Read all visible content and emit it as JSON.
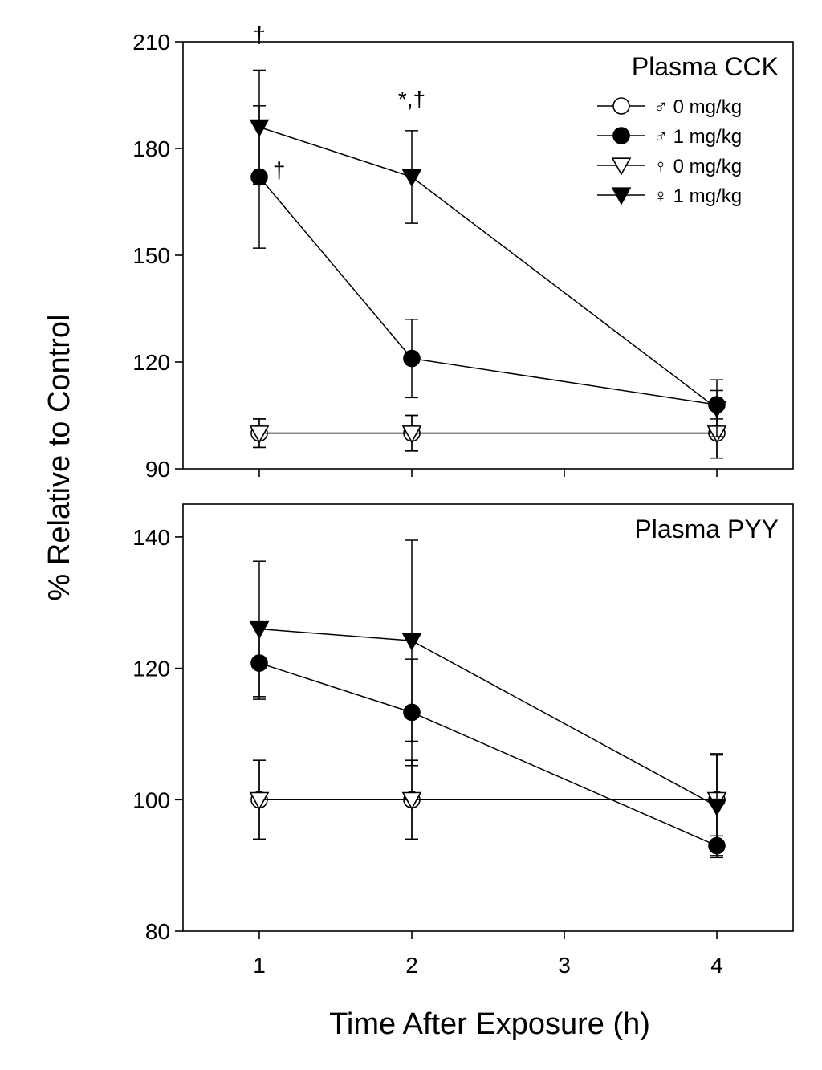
{
  "ylabel": "% Relative to Control",
  "xlabel": "Time After Exposure (h)",
  "chart_data": [
    {
      "type": "line",
      "title": "Plasma CCK",
      "ylabel": "% Relative to Control",
      "xlabel": "Time After Exposure (h)",
      "xlim": [
        0.5,
        4.5
      ],
      "ylim": [
        90,
        210
      ],
      "xticks": [
        1,
        2,
        3,
        4
      ],
      "yticks": [
        90,
        120,
        150,
        180,
        210
      ],
      "x_tick_labels_shown": false,
      "legend": "top-right",
      "series": [
        {
          "name": "♂ 0 mg/kg",
          "marker": "circle-open",
          "x": [
            1,
            2,
            4
          ],
          "y": [
            100,
            100,
            100
          ],
          "err": [
            4,
            5,
            7
          ]
        },
        {
          "name": "♂ 1 mg/kg",
          "marker": "circle-filled",
          "x": [
            1,
            2,
            4
          ],
          "y": [
            172,
            121,
            108
          ],
          "err": [
            20,
            11,
            4
          ]
        },
        {
          "name": "♀ 0 mg/kg",
          "marker": "triangle-down-open",
          "x": [
            1,
            2,
            4
          ],
          "y": [
            100,
            100,
            100
          ],
          "err": [
            4,
            5,
            7
          ]
        },
        {
          "name": "♀ 1 mg/kg",
          "marker": "triangle-down-filled",
          "x": [
            1,
            2,
            4
          ],
          "y": [
            186,
            172,
            107
          ],
          "err": [
            16,
            13,
            8
          ]
        }
      ],
      "annotations": [
        {
          "text": "†",
          "x": 1,
          "y": 212
        },
        {
          "text": "†",
          "x": 1.13,
          "y": 174
        },
        {
          "text": "*,†",
          "x": 2,
          "y": 194
        }
      ]
    },
    {
      "type": "line",
      "title": "Plasma PYY",
      "ylabel": "% Relative to Control",
      "xlabel": "Time After Exposure (h)",
      "xlim": [
        0.5,
        4.5
      ],
      "ylim": [
        80,
        145
      ],
      "xticks": [
        1,
        2,
        3,
        4
      ],
      "yticks": [
        80,
        100,
        120,
        140
      ],
      "series": [
        {
          "name": "♂ 0 mg/kg",
          "marker": "circle-open",
          "x": [
            1,
            2,
            4
          ],
          "y": [
            100,
            100,
            100
          ],
          "err": [
            6,
            6,
            7
          ]
        },
        {
          "name": "♂ 1 mg/kg",
          "marker": "circle-filled",
          "x": [
            1,
            2,
            4
          ],
          "y": [
            120.8,
            113.3,
            93
          ],
          "err": [
            5.5,
            8.1,
            1.5
          ]
        },
        {
          "name": "♀ 0 mg/kg",
          "marker": "triangle-down-open",
          "x": [
            1,
            2,
            4
          ],
          "y": [
            100,
            100,
            100
          ],
          "err": [
            6,
            6,
            7
          ]
        },
        {
          "name": "♀ 1 mg/kg",
          "marker": "triangle-down-filled",
          "x": [
            1,
            2,
            4
          ],
          "y": [
            126,
            124.2,
            99
          ],
          "err": [
            10.3,
            15.3,
            7.8
          ]
        }
      ],
      "annotations": []
    }
  ]
}
